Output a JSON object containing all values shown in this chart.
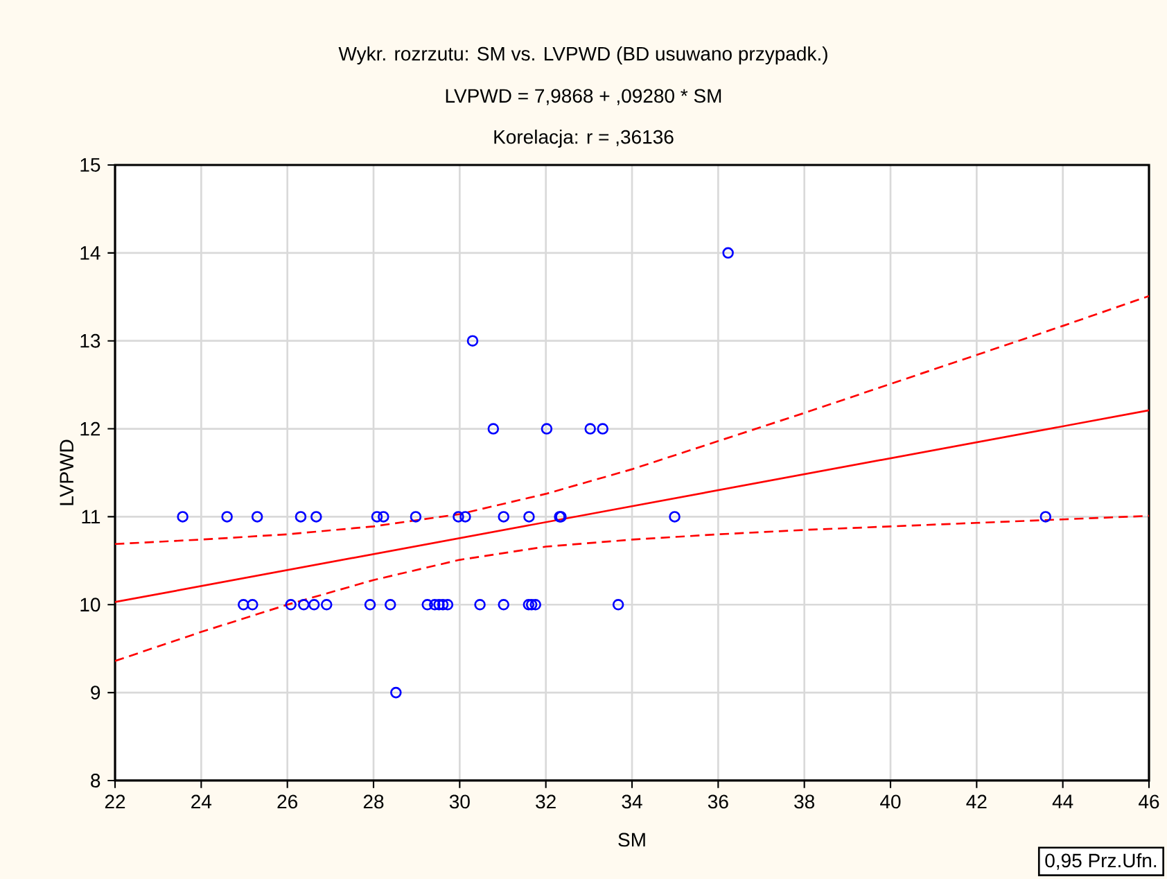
{
  "chart_data": {
    "type": "scatter",
    "title": "Wykr. rozrzutu: SM        vs. LVPWD    (BD usuwano przypadk.)",
    "subtitle": "LVPWD    = 7,9868 + ,09280 * SM",
    "annotations": [
      "Korelacja: r =    ,36136",
      "0,95 Prz.Ufn."
    ],
    "xlabel": "SM",
    "ylabel": "LVPWD",
    "xlim": [
      22,
      46
    ],
    "ylim": [
      8,
      15
    ],
    "xticks": [
      22,
      24,
      26,
      28,
      30,
      32,
      34,
      36,
      38,
      40,
      42,
      44,
      46
    ],
    "yticks": [
      8,
      9,
      10,
      11,
      12,
      13,
      14,
      15
    ],
    "grid": true,
    "series": [
      {
        "marker": "circle",
        "color": "#0000ff",
        "x": [
          23.57,
          24.6,
          25.3,
          26.31,
          26.67,
          28.08,
          28.23,
          28.98,
          29.97,
          30.13,
          31.02,
          31.61,
          32.32,
          32.35,
          34.99,
          43.6,
          24.98,
          25.19,
          26.08,
          26.38,
          26.62,
          26.91,
          27.92,
          28.39,
          29.25,
          29.42,
          29.52,
          29.61,
          29.72,
          30.47,
          31.02,
          31.6,
          31.67,
          31.76,
          33.68,
          28.52,
          30.78,
          32.02,
          33.03,
          33.32,
          30.3,
          36.23
        ],
        "values": [
          11,
          11,
          11,
          11,
          11,
          11,
          11,
          11,
          11,
          11,
          11,
          11,
          11,
          11,
          11,
          11,
          10,
          10,
          10,
          10,
          10,
          10,
          10,
          10,
          10,
          10,
          10,
          10,
          10,
          10,
          10,
          10,
          10,
          10,
          10,
          9,
          12,
          12,
          12,
          12,
          13,
          14
        ]
      },
      {
        "type": "line",
        "marker": "none",
        "line_style": "solid",
        "color": "#ff0000",
        "x": [
          22,
          46
        ],
        "values": [
          10.03,
          12.21
        ]
      },
      {
        "type": "line",
        "marker": "none",
        "line_style": "dashed",
        "color": "#ff0000",
        "x": [
          22,
          24,
          26,
          28,
          30,
          32,
          34,
          36,
          38,
          40,
          42,
          44,
          46
        ],
        "values": [
          10.69,
          10.74,
          10.8,
          10.89,
          11.03,
          11.26,
          11.54,
          11.86,
          12.18,
          12.51,
          12.84,
          13.17,
          13.51
        ]
      },
      {
        "type": "line",
        "marker": "none",
        "line_style": "dashed",
        "color": "#ff0000",
        "x": [
          22,
          24,
          26,
          28,
          30,
          32,
          34,
          36,
          38,
          40,
          42,
          44,
          46
        ],
        "values": [
          9.36,
          9.69,
          10.0,
          10.28,
          10.51,
          10.66,
          10.74,
          10.8,
          10.85,
          10.89,
          10.93,
          10.97,
          11.01
        ]
      }
    ]
  }
}
